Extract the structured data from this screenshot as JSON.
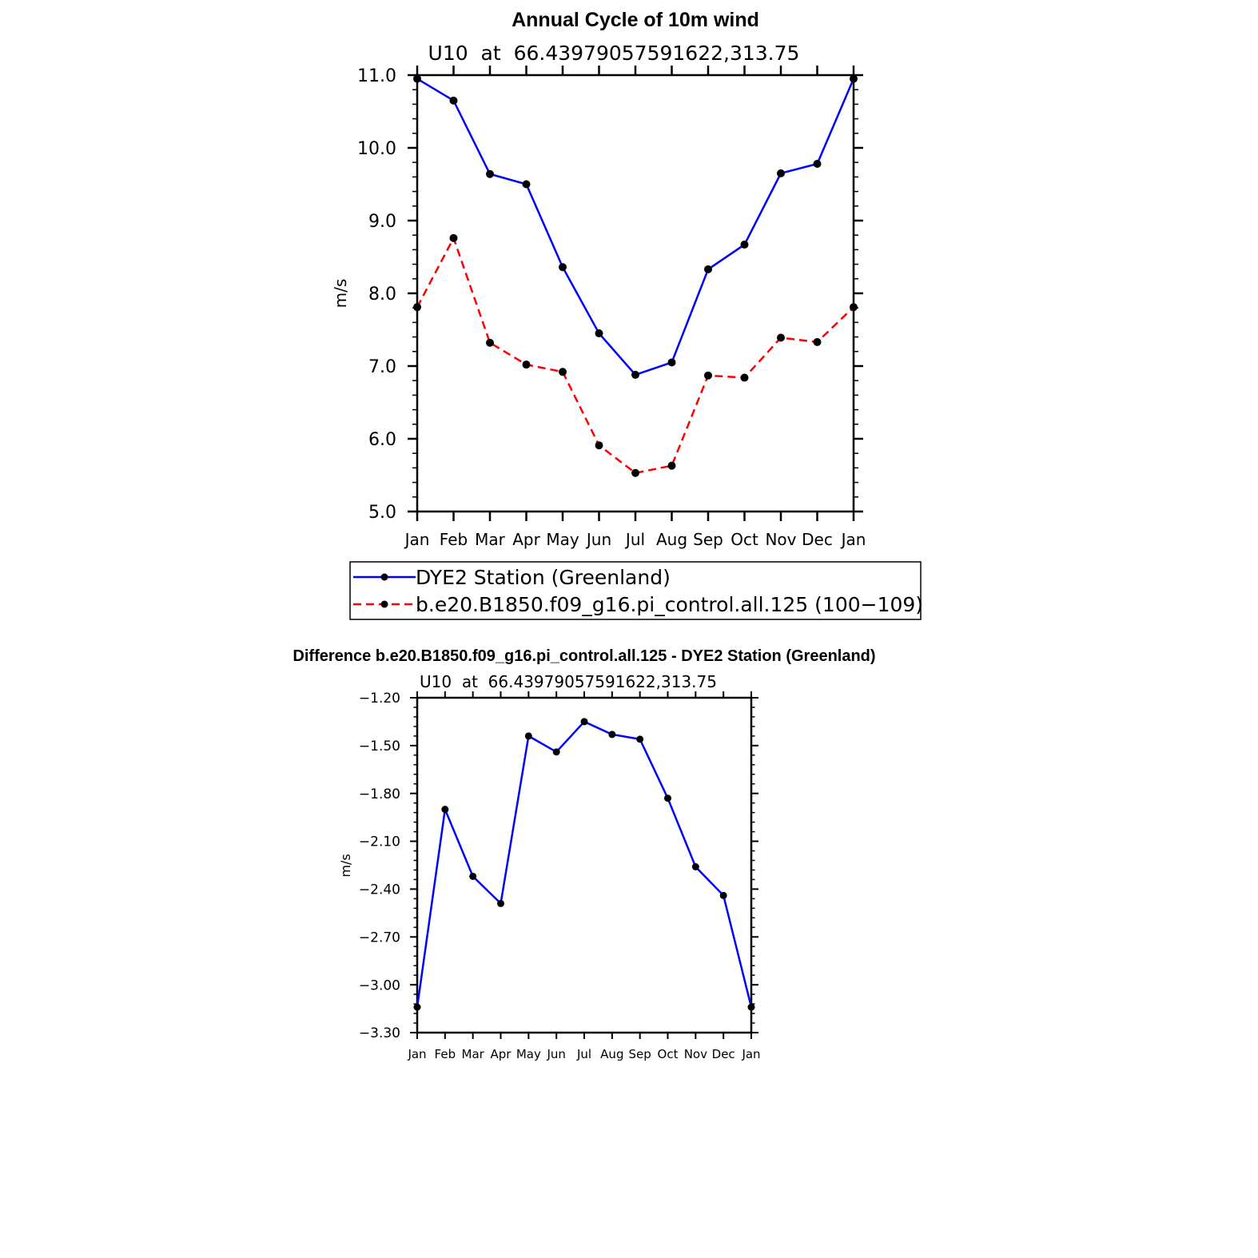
{
  "chart_data": [
    {
      "type": "line",
      "title": "Annual Cycle of 10m wind",
      "subtitle": "U10  at  66.43979057591622,313.75",
      "ylabel": "m/s",
      "xlabel": "",
      "categories": [
        "Jan",
        "Feb",
        "Mar",
        "Apr",
        "May",
        "Jun",
        "Jul",
        "Aug",
        "Sep",
        "Oct",
        "Nov",
        "Dec",
        "Jan"
      ],
      "ylim": [
        5.0,
        11.0
      ],
      "yticks": [
        "5.0",
        "6.0",
        "7.0",
        "8.0",
        "9.0",
        "10.0",
        "11.0"
      ],
      "grid": false,
      "legend": "bottom",
      "series": [
        {
          "name": "DYE2 Station (Greenland)",
          "color": "#0000ff",
          "style": "solid",
          "values": [
            10.95,
            10.65,
            9.64,
            9.5,
            8.36,
            7.45,
            6.88,
            7.05,
            8.33,
            8.67,
            9.65,
            9.78,
            10.95
          ]
        },
        {
          "name": "b.e20.B1850.f09_g16.pi_control.all.125 (100−109)",
          "color": "#ff0000",
          "style": "dashed",
          "values": [
            7.81,
            8.76,
            7.32,
            7.02,
            6.92,
            5.91,
            5.53,
            5.63,
            6.87,
            6.84,
            7.39,
            7.33,
            7.81
          ]
        }
      ]
    },
    {
      "type": "line",
      "title": "Difference b.e20.B1850.f09_g16.pi_control.all.125 - DYE2 Station (Greenland)",
      "subtitle": "U10  at  66.43979057591622,313.75",
      "ylabel": "m/s",
      "xlabel": "",
      "categories": [
        "Jan",
        "Feb",
        "Mar",
        "Apr",
        "May",
        "Jun",
        "Jul",
        "Aug",
        "Sep",
        "Oct",
        "Nov",
        "Dec",
        "Jan"
      ],
      "ylim": [
        -3.3,
        -1.2
      ],
      "yticks": [
        "−3.30",
        "−3.00",
        "−2.70",
        "−2.40",
        "−2.10",
        "−1.80",
        "−1.50",
        "−1.20"
      ],
      "grid": false,
      "series": [
        {
          "color": "#0000ff",
          "style": "solid",
          "values": [
            -3.14,
            -1.9,
            -2.32,
            -2.49,
            -1.44,
            -1.54,
            -1.35,
            -1.43,
            -1.46,
            -1.83,
            -2.26,
            -2.44,
            -3.14
          ]
        }
      ]
    }
  ]
}
